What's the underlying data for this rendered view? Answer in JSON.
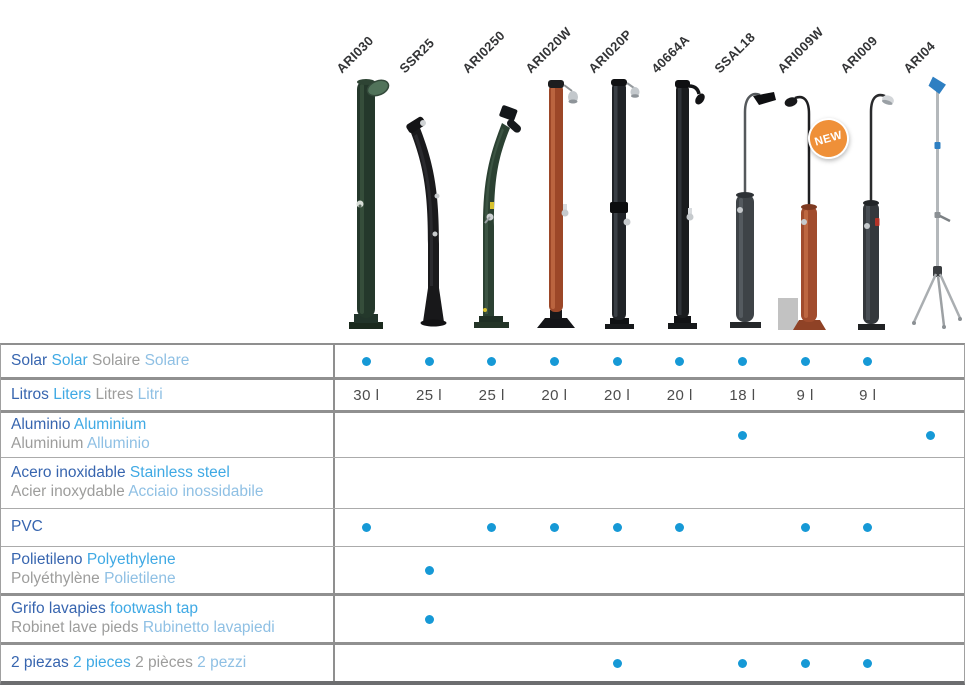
{
  "colors": {
    "dot": "#1699d6",
    "es": "#3765af",
    "en": "#3fa9e4",
    "fr": "#9d9d9c",
    "it": "#8fc0e4",
    "badge": "#ef9038"
  },
  "header": {
    "products": [
      {
        "code": "ARI030"
      },
      {
        "code": "SSR25"
      },
      {
        "code": "ARI0250"
      },
      {
        "code": "ARI020W"
      },
      {
        "code": "ARI020P"
      },
      {
        "code": "40664A"
      },
      {
        "code": "SSAL18"
      },
      {
        "code": "ARI009W",
        "badge": "NEW"
      },
      {
        "code": "ARI009"
      },
      {
        "code": "ARI04"
      }
    ]
  },
  "table": {
    "rows": [
      {
        "id": "solar",
        "line1": [
          {
            "t": "Solar",
            "lang": "es"
          },
          {
            "t": "Solar",
            "lang": "en"
          },
          {
            "t": "Solaire",
            "lang": "fr"
          },
          {
            "t": "Solare",
            "lang": "it"
          }
        ],
        "line2": [],
        "cells": [
          "dot",
          "dot",
          "dot",
          "dot",
          "dot",
          "dot",
          "dot",
          "dot",
          "dot",
          ""
        ]
      },
      {
        "id": "litros",
        "line1": [
          {
            "t": "Litros",
            "lang": "es"
          },
          {
            "t": "Liters",
            "lang": "en"
          },
          {
            "t": "Litres",
            "lang": "fr"
          },
          {
            "t": "Litri",
            "lang": "it"
          }
        ],
        "line2": [],
        "cells": [
          "30 l",
          "25 l",
          "25 l",
          "20 l",
          "20 l",
          "20 l",
          "18 l",
          "9 l",
          "9 l",
          ""
        ]
      },
      {
        "id": "aluminio",
        "line1": [
          {
            "t": "Aluminio",
            "lang": "es"
          },
          {
            "t": "Aluminium",
            "lang": "en"
          }
        ],
        "line2": [
          {
            "t": "Aluminium",
            "lang": "fr"
          },
          {
            "t": "Alluminio",
            "lang": "it"
          }
        ],
        "cells": [
          "",
          "",
          "",
          "",
          "",
          "",
          "dot",
          "",
          "",
          "dot"
        ]
      },
      {
        "id": "acero",
        "line1": [
          {
            "t": "Acero inoxidable",
            "lang": "es"
          },
          {
            "t": "Stainless steel",
            "lang": "en"
          }
        ],
        "line2": [
          {
            "t": "Acier inoxydable",
            "lang": "fr"
          },
          {
            "t": "Acciaio inossidabile",
            "lang": "it"
          }
        ],
        "cells": [
          "",
          "",
          "",
          "",
          "",
          "",
          "",
          "",
          "",
          ""
        ]
      },
      {
        "id": "pvc",
        "line1": [
          {
            "t": "PVC",
            "lang": "es"
          }
        ],
        "line2": [],
        "cells": [
          "dot",
          "",
          "dot",
          "dot",
          "dot",
          "dot",
          "",
          "dot",
          "dot",
          ""
        ]
      },
      {
        "id": "polietileno",
        "line1": [
          {
            "t": "Polietileno",
            "lang": "es"
          },
          {
            "t": "Polyethylene",
            "lang": "en"
          }
        ],
        "line2": [
          {
            "t": "Polyéthylène",
            "lang": "fr"
          },
          {
            "t": "Polietilene",
            "lang": "it"
          }
        ],
        "cells": [
          "",
          "dot",
          "",
          "",
          "",
          "",
          "",
          "",
          "",
          ""
        ]
      },
      {
        "id": "grifo",
        "line1": [
          {
            "t": "Grifo lavapies",
            "lang": "es"
          },
          {
            "t": "footwash tap",
            "lang": "en"
          }
        ],
        "line2": [
          {
            "t": "Robinet lave pieds",
            "lang": "fr"
          },
          {
            "t": "Rubinetto lavapiedi",
            "lang": "it"
          }
        ],
        "cells": [
          "",
          "dot",
          "",
          "",
          "",
          "",
          "",
          "",
          "",
          ""
        ]
      },
      {
        "id": "piezas",
        "line1": [
          {
            "t": "2 piezas",
            "lang": "es"
          },
          {
            "t": "2 pieces",
            "lang": "en"
          },
          {
            "t": "2 pièces",
            "lang": "fr"
          },
          {
            "t": "2 pezzi",
            "lang": "it"
          }
        ],
        "line2": [],
        "cells": [
          "",
          "",
          "",
          "",
          "dot",
          "",
          "dot",
          "dot",
          "dot",
          ""
        ]
      }
    ]
  }
}
